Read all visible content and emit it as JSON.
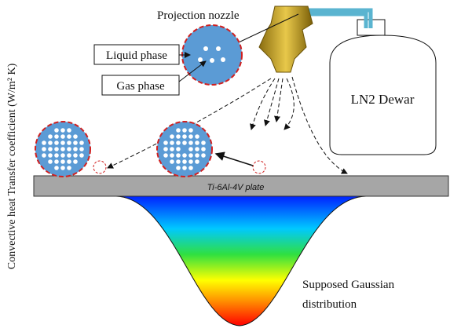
{
  "labels": {
    "nozzle": "Projection nozzle",
    "liquid": "Liquid phase",
    "gas": "Gas phase",
    "dewar": "LN2 Dewar",
    "plate": "Ti-6Al-4V plate",
    "gaussian": [
      "Supposed Gaussian",
      "distribution"
    ],
    "y_axis": "Convective heat Transfer coefficient (W/m² K)"
  }
}
